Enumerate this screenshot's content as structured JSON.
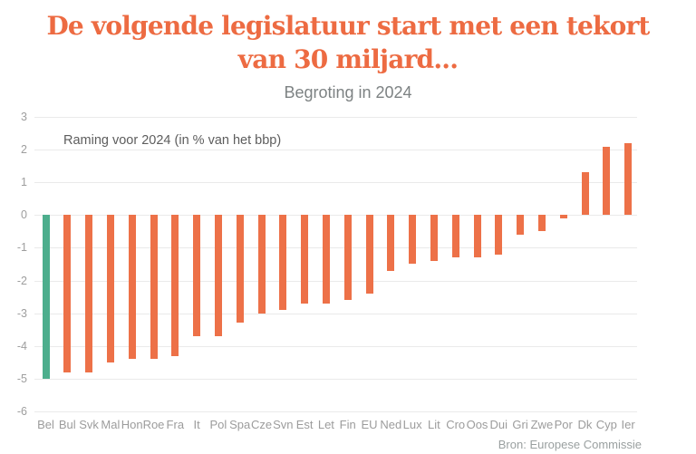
{
  "header": {
    "title_line1": "De volgende legislatuur start met een tekort",
    "title_line2": "van 30 miljard...",
    "subtitle": "Begroting in 2024"
  },
  "chart_data": {
    "type": "bar",
    "title": "Begroting in 2024",
    "annotation": "Raming voor 2024 (in % van het bbp)",
    "source": "Bron: Europese Commissie",
    "categories": [
      "Bel",
      "Bul",
      "Svk",
      "Mal",
      "Hon",
      "Roe",
      "Fra",
      "It",
      "Pol",
      "Spa",
      "Cze",
      "Svn",
      "Est",
      "Let",
      "Fin",
      "EU",
      "Ned",
      "Lux",
      "Lit",
      "Cro",
      "Oos",
      "Dui",
      "Gri",
      "Zwe",
      "Por",
      "Dk",
      "Cyp",
      "Ier"
    ],
    "values": [
      -5.0,
      -4.8,
      -4.8,
      -4.5,
      -4.4,
      -4.4,
      -4.3,
      -3.7,
      -3.7,
      -3.3,
      -3.0,
      -2.9,
      -2.7,
      -2.7,
      -2.6,
      -2.4,
      -1.7,
      -1.5,
      -1.4,
      -1.3,
      -1.3,
      -1.2,
      -0.6,
      -0.5,
      -0.1,
      1.3,
      2.1,
      2.2
    ],
    "xlabel": "",
    "ylabel": "",
    "ylim": [
      -6,
      3
    ],
    "yticks": [
      3,
      2,
      1,
      0,
      -1,
      -2,
      -3,
      -4,
      -5,
      -6
    ],
    "grid": true,
    "legend": "none",
    "bar_color": "#ED7148",
    "highlight": {
      "category": "Bel",
      "color": "#4DAE8D"
    }
  },
  "colors": {
    "title_accent": "#ED6B42",
    "bar_orange": "#ED7148",
    "bar_green": "#4DAE8D",
    "axis_label_gray": "#9C9C9C",
    "grid_gray": "#EAEAEA"
  }
}
